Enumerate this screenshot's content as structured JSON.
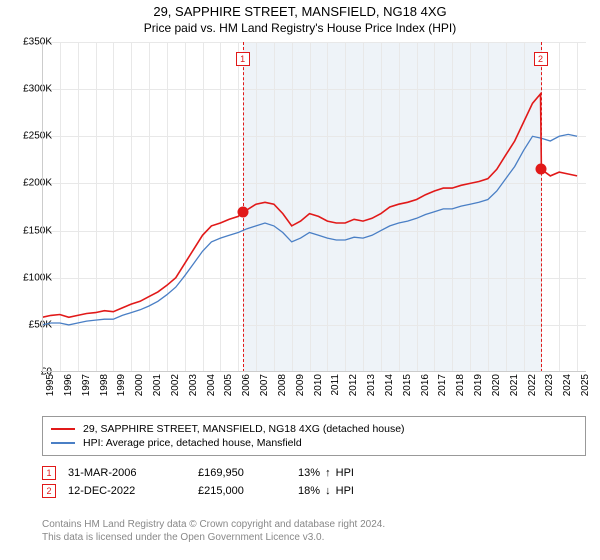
{
  "title": "29, SAPPHIRE STREET, MANSFIELD, NG18 4XG",
  "subtitle": "Price paid vs. HM Land Registry's House Price Index (HPI)",
  "chart": {
    "type": "line",
    "background_color": "#ffffff",
    "grid_color": "#e8e8e8",
    "axis_color": "#cccccc",
    "shade_color": "#eef3f8",
    "x": {
      "min": 1995,
      "max": 2025.5,
      "ticks": [
        1995,
        1996,
        1997,
        1998,
        1999,
        2000,
        2001,
        2002,
        2003,
        2004,
        2005,
        2006,
        2007,
        2008,
        2009,
        2010,
        2011,
        2012,
        2013,
        2014,
        2015,
        2016,
        2017,
        2018,
        2019,
        2020,
        2021,
        2022,
        2023,
        2024,
        2025
      ]
    },
    "y": {
      "min": 0,
      "max": 350000,
      "ticks": [
        0,
        50000,
        100000,
        150000,
        200000,
        250000,
        300000,
        350000
      ],
      "labels": [
        "£0",
        "£50K",
        "£100K",
        "£150K",
        "£200K",
        "£250K",
        "£300K",
        "£350K"
      ]
    },
    "series": [
      {
        "name": "29, SAPPHIRE STREET, MANSFIELD, NG18 4XG (detached house)",
        "color": "#e11919",
        "width": 1.6,
        "data": [
          [
            1995,
            58000
          ],
          [
            1995.5,
            60000
          ],
          [
            1996,
            61000
          ],
          [
            1996.5,
            58000
          ],
          [
            1997,
            60000
          ],
          [
            1997.5,
            62000
          ],
          [
            1998,
            63000
          ],
          [
            1998.5,
            65000
          ],
          [
            1999,
            64000
          ],
          [
            1999.5,
            68000
          ],
          [
            2000,
            72000
          ],
          [
            2000.5,
            75000
          ],
          [
            2001,
            80000
          ],
          [
            2001.5,
            85000
          ],
          [
            2002,
            92000
          ],
          [
            2002.5,
            100000
          ],
          [
            2003,
            115000
          ],
          [
            2003.5,
            130000
          ],
          [
            2004,
            145000
          ],
          [
            2004.5,
            155000
          ],
          [
            2005,
            158000
          ],
          [
            2005.5,
            162000
          ],
          [
            2006,
            165000
          ],
          [
            2006.25,
            169950
          ],
          [
            2006.5,
            172000
          ],
          [
            2007,
            178000
          ],
          [
            2007.5,
            180000
          ],
          [
            2008,
            178000
          ],
          [
            2008.5,
            168000
          ],
          [
            2009,
            155000
          ],
          [
            2009.5,
            160000
          ],
          [
            2010,
            168000
          ],
          [
            2010.5,
            165000
          ],
          [
            2011,
            160000
          ],
          [
            2011.5,
            158000
          ],
          [
            2012,
            158000
          ],
          [
            2012.5,
            162000
          ],
          [
            2013,
            160000
          ],
          [
            2013.5,
            163000
          ],
          [
            2014,
            168000
          ],
          [
            2014.5,
            175000
          ],
          [
            2015,
            178000
          ],
          [
            2015.5,
            180000
          ],
          [
            2016,
            183000
          ],
          [
            2016.5,
            188000
          ],
          [
            2017,
            192000
          ],
          [
            2017.5,
            195000
          ],
          [
            2018,
            195000
          ],
          [
            2018.5,
            198000
          ],
          [
            2019,
            200000
          ],
          [
            2019.5,
            202000
          ],
          [
            2020,
            205000
          ],
          [
            2020.5,
            215000
          ],
          [
            2021,
            230000
          ],
          [
            2021.5,
            245000
          ],
          [
            2022,
            265000
          ],
          [
            2022.5,
            285000
          ],
          [
            2022.95,
            295000
          ],
          [
            2023,
            215000
          ],
          [
            2023.5,
            208000
          ],
          [
            2024,
            212000
          ],
          [
            2024.5,
            210000
          ],
          [
            2025,
            208000
          ]
        ]
      },
      {
        "name": "HPI: Average price, detached house, Mansfield",
        "color": "#4a7fc5",
        "width": 1.3,
        "data": [
          [
            1995,
            50000
          ],
          [
            1995.5,
            52000
          ],
          [
            1996,
            52000
          ],
          [
            1996.5,
            50000
          ],
          [
            1997,
            52000
          ],
          [
            1997.5,
            54000
          ],
          [
            1998,
            55000
          ],
          [
            1998.5,
            56000
          ],
          [
            1999,
            56000
          ],
          [
            1999.5,
            60000
          ],
          [
            2000,
            63000
          ],
          [
            2000.5,
            66000
          ],
          [
            2001,
            70000
          ],
          [
            2001.5,
            75000
          ],
          [
            2002,
            82000
          ],
          [
            2002.5,
            90000
          ],
          [
            2003,
            102000
          ],
          [
            2003.5,
            115000
          ],
          [
            2004,
            128000
          ],
          [
            2004.5,
            138000
          ],
          [
            2005,
            142000
          ],
          [
            2005.5,
            145000
          ],
          [
            2006,
            148000
          ],
          [
            2006.5,
            152000
          ],
          [
            2007,
            155000
          ],
          [
            2007.5,
            158000
          ],
          [
            2008,
            155000
          ],
          [
            2008.5,
            148000
          ],
          [
            2009,
            138000
          ],
          [
            2009.5,
            142000
          ],
          [
            2010,
            148000
          ],
          [
            2010.5,
            145000
          ],
          [
            2011,
            142000
          ],
          [
            2011.5,
            140000
          ],
          [
            2012,
            140000
          ],
          [
            2012.5,
            143000
          ],
          [
            2013,
            142000
          ],
          [
            2013.5,
            145000
          ],
          [
            2014,
            150000
          ],
          [
            2014.5,
            155000
          ],
          [
            2015,
            158000
          ],
          [
            2015.5,
            160000
          ],
          [
            2016,
            163000
          ],
          [
            2016.5,
            167000
          ],
          [
            2017,
            170000
          ],
          [
            2017.5,
            173000
          ],
          [
            2018,
            173000
          ],
          [
            2018.5,
            176000
          ],
          [
            2019,
            178000
          ],
          [
            2019.5,
            180000
          ],
          [
            2020,
            183000
          ],
          [
            2020.5,
            192000
          ],
          [
            2021,
            205000
          ],
          [
            2021.5,
            218000
          ],
          [
            2022,
            235000
          ],
          [
            2022.5,
            250000
          ],
          [
            2023,
            248000
          ],
          [
            2023.5,
            245000
          ],
          [
            2024,
            250000
          ],
          [
            2024.5,
            252000
          ],
          [
            2025,
            250000
          ]
        ]
      }
    ],
    "sale_lines": [
      {
        "x": 2006.25,
        "color": "#e11919",
        "badge": "1"
      },
      {
        "x": 2022.95,
        "color": "#e11919",
        "badge": "2"
      }
    ],
    "markers": [
      {
        "x": 2006.25,
        "y": 169950,
        "color": "#e11919"
      },
      {
        "x": 2022.95,
        "y": 215000,
        "color": "#e11919"
      }
    ]
  },
  "legend": {
    "items": [
      {
        "color": "#e11919",
        "label": "29, SAPPHIRE STREET, MANSFIELD, NG18 4XG (detached house)"
      },
      {
        "color": "#4a7fc5",
        "label": "HPI: Average price, detached house, Mansfield"
      }
    ]
  },
  "sales": [
    {
      "badge": "1",
      "color": "#e11919",
      "date": "31-MAR-2006",
      "price": "£169,950",
      "diff_pct": "13%",
      "diff_dir": "up",
      "diff_label": "HPI"
    },
    {
      "badge": "2",
      "color": "#e11919",
      "date": "12-DEC-2022",
      "price": "£215,000",
      "diff_pct": "18%",
      "diff_dir": "down",
      "diff_label": "HPI"
    }
  ],
  "footer": {
    "line1": "Contains HM Land Registry data © Crown copyright and database right 2024.",
    "line2": "This data is licensed under the Open Government Licence v3.0."
  },
  "font_sizes": {
    "title": 13,
    "subtitle": 12,
    "axis": 10,
    "legend": 10.5,
    "sales": 11,
    "footer": 10
  }
}
